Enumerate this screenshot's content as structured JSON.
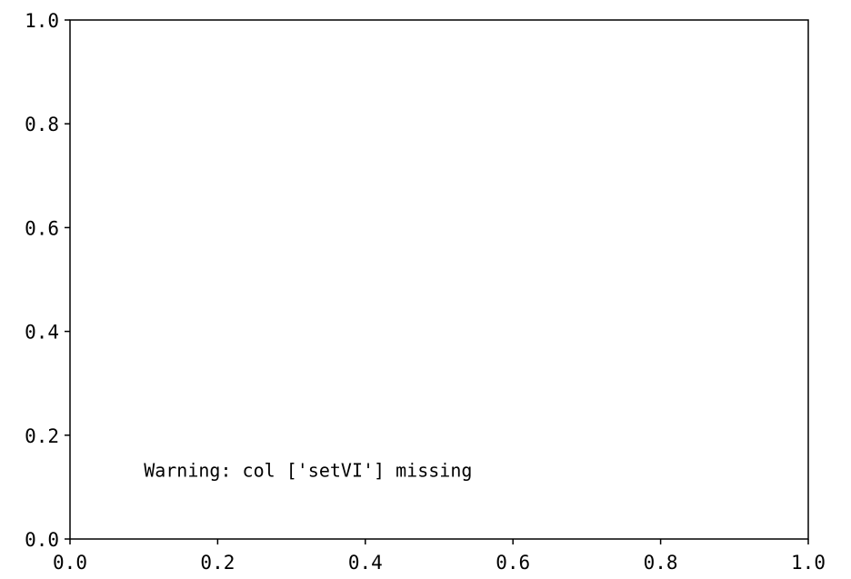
{
  "chart_data": {
    "type": "scatter",
    "title": "",
    "xlabel": "",
    "ylabel": "",
    "xlim": [
      0.0,
      1.0
    ],
    "ylim": [
      0.0,
      1.0
    ],
    "grid": false,
    "legend": "none",
    "series": [],
    "x_ticks": [
      {
        "value": 0.0,
        "label": "0.0"
      },
      {
        "value": 0.2,
        "label": "0.2"
      },
      {
        "value": 0.4,
        "label": "0.4"
      },
      {
        "value": 0.6,
        "label": "0.6"
      },
      {
        "value": 0.8,
        "label": "0.8"
      },
      {
        "value": 1.0,
        "label": "1.0"
      }
    ],
    "y_ticks": [
      {
        "value": 0.0,
        "label": "0.0"
      },
      {
        "value": 0.2,
        "label": "0.2"
      },
      {
        "value": 0.4,
        "label": "0.4"
      },
      {
        "value": 0.6,
        "label": "0.6"
      },
      {
        "value": 0.8,
        "label": "0.8"
      },
      {
        "value": 1.0,
        "label": "1.0"
      }
    ],
    "annotations": [
      {
        "text": "Warning: col ['setVI'] missing",
        "x": 0.1,
        "y": 0.12
      }
    ]
  },
  "colors": {
    "axes": "#000000",
    "background": "#ffffff",
    "text": "#000000"
  }
}
